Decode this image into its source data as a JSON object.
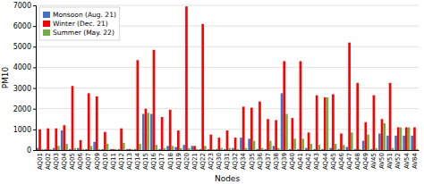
{
  "chart_data": {
    "type": "bar",
    "categories": [
      "AQ01",
      "AQ02",
      "AQ03",
      "AQ04",
      "AQ05",
      "AQ06",
      "AQ07",
      "AQ09",
      "AQ10",
      "AQ11",
      "AQ12",
      "AQ13",
      "AQ14",
      "AQ15",
      "AQ16",
      "AQ17",
      "AQ18",
      "AQ19",
      "AQ20",
      "AQ21",
      "AQ22",
      "AQ23",
      "AQ30",
      "AQ31",
      "AQ32",
      "AQ34",
      "AQ35",
      "AQ36",
      "AQ37",
      "AQ38",
      "AQ39",
      "AQ40",
      "AQ41",
      "AQ42",
      "AQ43",
      "AQ44",
      "AQ45",
      "AQ46",
      "AQ47",
      "AQ48",
      "AQ49",
      "AV45",
      "AV50",
      "AV51",
      "AV52",
      "AV54",
      "AV84"
    ],
    "series": [
      {
        "name": "Monsoon (Aug. 21)",
        "color": "#4472C4",
        "values": [
          100,
          50,
          100,
          950,
          50,
          100,
          50,
          400,
          50,
          50,
          50,
          50,
          50,
          1750,
          1750,
          50,
          200,
          150,
          250,
          200,
          50,
          50,
          50,
          50,
          100,
          600,
          550,
          50,
          50,
          200,
          2750,
          50,
          50,
          100,
          50,
          50,
          100,
          50,
          150,
          50,
          450,
          50,
          800,
          700,
          700,
          700,
          700
        ]
      },
      {
        "name": "Winter (Dec. 21)",
        "color": "#FF0000",
        "values": [
          1000,
          1050,
          1050,
          1200,
          3100,
          480,
          2750,
          2600,
          880,
          50,
          1050,
          50,
          4350,
          2000,
          4850,
          1600,
          1950,
          950,
          6950,
          200,
          6100,
          750,
          600,
          950,
          600,
          2100,
          2050,
          2350,
          1500,
          1450,
          4300,
          1550,
          4300,
          850,
          2650,
          2550,
          2700,
          800,
          5200,
          3250,
          1350,
          2650,
          1500,
          3250,
          1100,
          1100,
          1100
        ]
      },
      {
        "name": "Summer (May. 22)",
        "color": "#70AD47",
        "values": [
          50,
          50,
          200,
          300,
          100,
          50,
          200,
          50,
          300,
          50,
          350,
          50,
          300,
          1800,
          250,
          100,
          200,
          100,
          100,
          50,
          200,
          50,
          100,
          100,
          50,
          100,
          450,
          100,
          450,
          100,
          1750,
          550,
          550,
          300,
          250,
          2550,
          300,
          250,
          850,
          50,
          750,
          100,
          1300,
          100,
          1100,
          1100,
          50
        ]
      }
    ],
    "xlabel": "Nodes",
    "ylabel": "PM10",
    "ylim": [
      0,
      7000
    ],
    "yticks": [
      0,
      1000,
      2000,
      3000,
      4000,
      5000,
      6000,
      7000
    ],
    "grid": true,
    "legend": "top-left"
  }
}
